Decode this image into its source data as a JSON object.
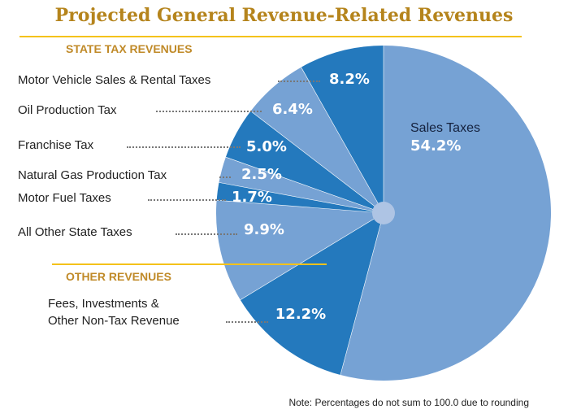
{
  "chart_data": {
    "type": "pie",
    "title": "Projected General Revenue-Related Revenues",
    "sections": [
      "STATE TAX REVENUES",
      "OTHER REVENUES"
    ],
    "slices": [
      {
        "label": "Sales Taxes",
        "value": 54.2,
        "display": "54.2%",
        "color": "#76a2d4"
      },
      {
        "label": "Fees, Investments & Other Non-Tax Revenue",
        "value": 12.2,
        "display": "12.2%",
        "color": "#2479bd"
      },
      {
        "label": "All Other State Taxes",
        "value": 9.9,
        "display": "9.9%",
        "color": "#76a2d4"
      },
      {
        "label": "Motor Fuel Taxes",
        "value": 1.7,
        "display": "1.7%",
        "color": "#2479bd"
      },
      {
        "label": "Natural Gas Production Tax",
        "value": 2.5,
        "display": "2.5%",
        "color": "#76a2d4"
      },
      {
        "label": "Franchise Tax",
        "value": 5.0,
        "display": "5.0%",
        "color": "#2479bd"
      },
      {
        "label": "Oil Production Tax",
        "value": 6.4,
        "display": "6.4%",
        "color": "#76a2d4"
      },
      {
        "label": "Motor Vehicle Sales & Rental Taxes",
        "value": 8.2,
        "display": "8.2%",
        "color": "#2479bd"
      }
    ],
    "fees_label_lines": [
      "Fees, Investments &",
      "Other Non-Tax Revenue"
    ],
    "note": "Note: Percentages do not sum to 100.0 due to rounding"
  }
}
